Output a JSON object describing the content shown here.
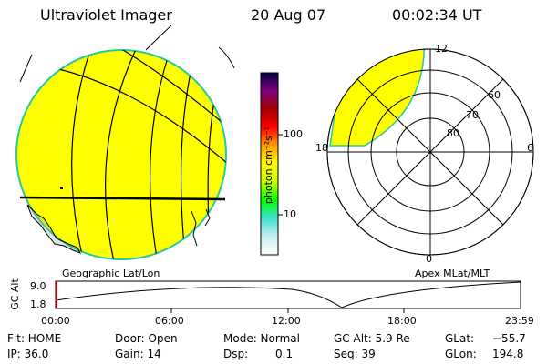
{
  "header": {
    "instrument": "Ultraviolet Imager",
    "date": "20 Aug 07",
    "time": "00:02:34 UT"
  },
  "colors": {
    "fill": "#ffff00",
    "rim": "#28c8a0",
    "line": "#000000"
  },
  "colorbar": {
    "unit": "photon cm⁻²s⁻¹",
    "ticks": [
      "100",
      "10"
    ],
    "stops": [
      "#ffffff",
      "#c8f0f0",
      "#40e0d0",
      "#00ff00",
      "#c8ff00",
      "#ffff00",
      "#ffa000",
      "#ff0000",
      "#a00000",
      "#800080",
      "#000040"
    ]
  },
  "geo_panel": {
    "label": "Geographic Lat/Lon"
  },
  "polar_panel": {
    "label": "Apex MLat/MLT",
    "mlt_labels": {
      "top": "12",
      "left": "18",
      "right": "6",
      "bottom": "0"
    },
    "lat_labels": [
      "60",
      "70",
      "80"
    ]
  },
  "alt_plot": {
    "axis_label": "GC Alt",
    "y_ticks": [
      "9.0",
      "1.8"
    ],
    "x_ticks": [
      "00:00",
      "06:00",
      "12:00",
      "18:00",
      "23:59"
    ]
  },
  "status": {
    "flt": "Flt: HOME",
    "ip": "IP: 36.0",
    "door": "Door: Open",
    "gain": "Gain: 14",
    "mode": "Mode: Normal",
    "dsp_label": "Dsp:",
    "dsp_value": "0.1",
    "gc_alt": "GC Alt: 5.9 Re",
    "seq": "Seq: 39",
    "glat_label": "GLat:",
    "glat_value": "−55.7",
    "glon_label": "GLon:",
    "glon_value": "194.8"
  }
}
